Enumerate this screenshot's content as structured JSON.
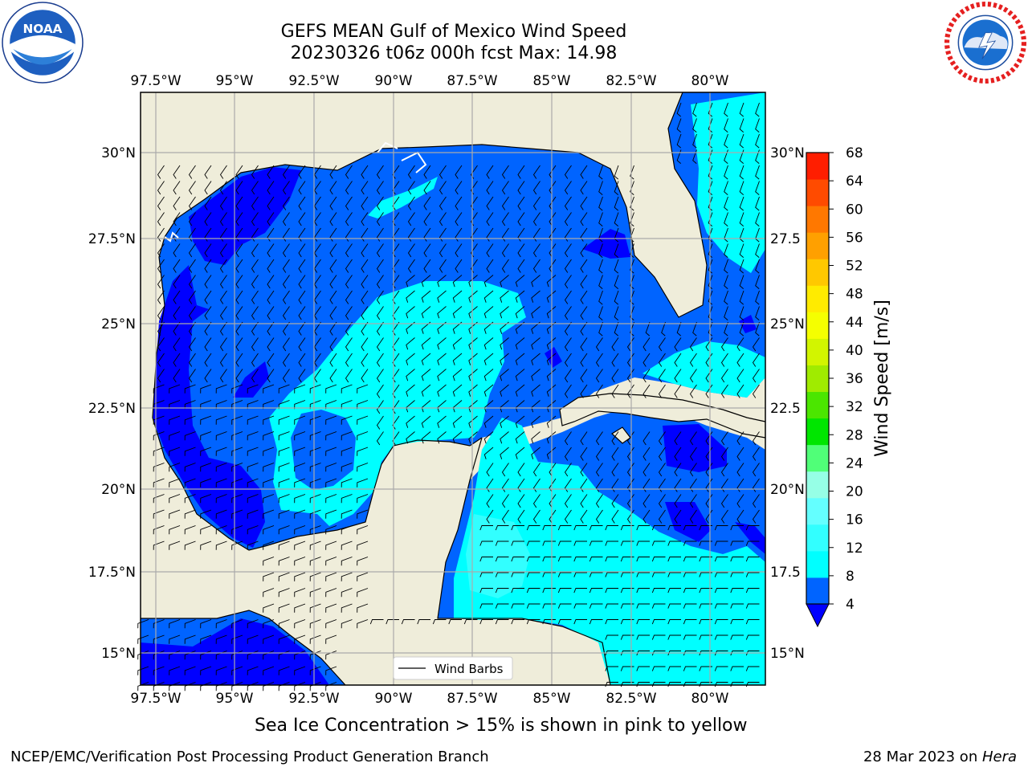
{
  "title": {
    "line1": "GEFS MEAN Gulf of Mexico Wind Speed",
    "line2": "20230326 t06z 000h fcst   Max: 14.98"
  },
  "axes": {
    "lon_labels": [
      "97.5°W",
      "95°W",
      "92.5°W",
      "90°W",
      "87.5°W",
      "85°W",
      "82.5°W",
      "80°W"
    ],
    "lat_labels_left": [
      "30°N",
      "27.5°N",
      "25°N",
      "22.5°N",
      "20°N",
      "17.5°N",
      "15°N"
    ],
    "lat_labels_right": [
      "30°N",
      "27.5",
      "25°N",
      "22.5",
      "20°N",
      "17.5",
      "15°N"
    ]
  },
  "legend": {
    "label": "Wind Barbs"
  },
  "colorbar": {
    "label": "Wind Speed [m/s]",
    "ticks": [
      "4",
      "8",
      "12",
      "16",
      "20",
      "24",
      "28",
      "32",
      "36",
      "40",
      "44",
      "48",
      "52",
      "56",
      "60",
      "64",
      "68"
    ],
    "colors": [
      "#0064ff",
      "#00ffff",
      "#32ffff",
      "#64ffff",
      "#96ffe6",
      "#50ff78",
      "#00e600",
      "#4be600",
      "#a0eb00",
      "#d2f500",
      "#f5ff00",
      "#ffeb00",
      "#ffc800",
      "#ffa000",
      "#ff7800",
      "#ff4b00",
      "#ff1e00"
    ],
    "under_color": "#0000ff"
  },
  "field_colors": {
    "land": "#efedda",
    "lvl1": "#0000ff",
    "lvl2": "#0064ff",
    "lvl3": "#00ffff",
    "lvl4": "#32ffff",
    "lvl5": "#64ffff"
  },
  "caption": "Sea Ice Concentration > 15% is shown in pink to yellow",
  "footer": {
    "left": "NCEP/EMC/Verification Post Processing Product Generation Branch",
    "right_date": "28 Mar 2023 on ",
    "right_host": "Hera"
  }
}
